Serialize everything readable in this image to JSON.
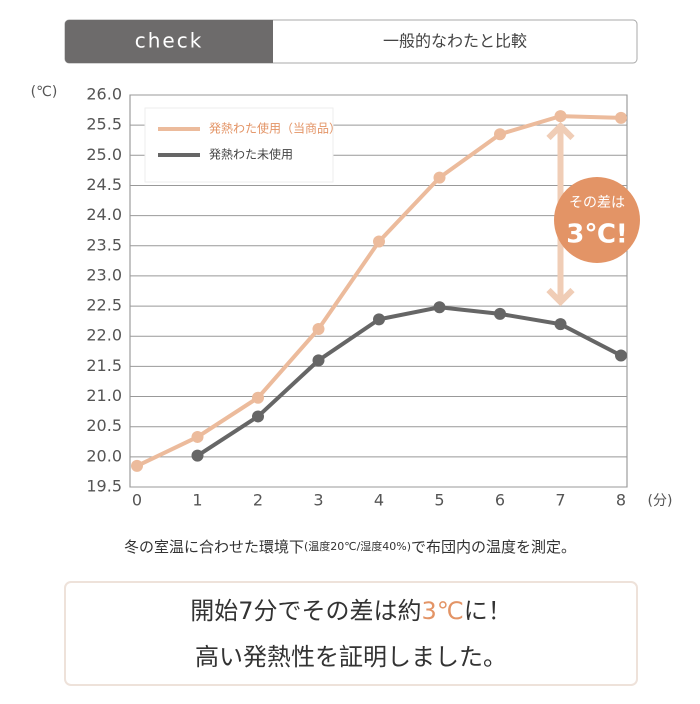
{
  "header": {
    "tab": "check",
    "title": "一般的なわたと比較"
  },
  "chart_data": {
    "type": "line",
    "ylabel": "(℃)",
    "xlabel": "(分)",
    "x": [
      0,
      1,
      2,
      3,
      4,
      5,
      6,
      7,
      8
    ],
    "series": [
      {
        "name": "発熱わた使用（当商品）",
        "color": "#ecbb9c",
        "values": [
          19.85,
          20.33,
          20.98,
          22.12,
          23.57,
          24.63,
          25.35,
          25.65,
          25.62
        ]
      },
      {
        "name": "発熱わた未使用",
        "color": "#666666",
        "values": [
          null,
          20.02,
          20.67,
          21.6,
          22.28,
          22.48,
          22.37,
          22.2,
          21.68
        ]
      }
    ],
    "xlim": [
      0,
      8
    ],
    "xticks": [
      0,
      1,
      2,
      3,
      4,
      5,
      6,
      7,
      8
    ],
    "ylim": [
      19.5,
      26
    ],
    "yticks": [
      19.5,
      {
        "value": 20,
        "label": "20.0"
      },
      20.5,
      {
        "value": 21,
        "label": "21.0"
      },
      21.5,
      {
        "value": 22,
        "label": "22.0"
      },
      22.5,
      {
        "value": 23,
        "label": "23.0"
      },
      23.5,
      {
        "value": 24,
        "label": "24.0"
      },
      24.5,
      {
        "value": 25,
        "label": "25.0"
      },
      25.5,
      {
        "value": 26,
        "label": "26.0"
      }
    ],
    "grid": true,
    "annotation": {
      "line1": "その差は",
      "line2": "3℃!",
      "color": "#e39466"
    }
  },
  "caption": {
    "main_before": "冬の室温に合わせた環境下",
    "detail": "(温度20℃/湿度40%)",
    "main_after": "で布団内の温度を測定。"
  },
  "summary": {
    "line1_before": "開始7分でその差は約",
    "line1_highlight": "3℃",
    "line1_after": "に！",
    "line2": "高い発熱性を証明しました。"
  }
}
